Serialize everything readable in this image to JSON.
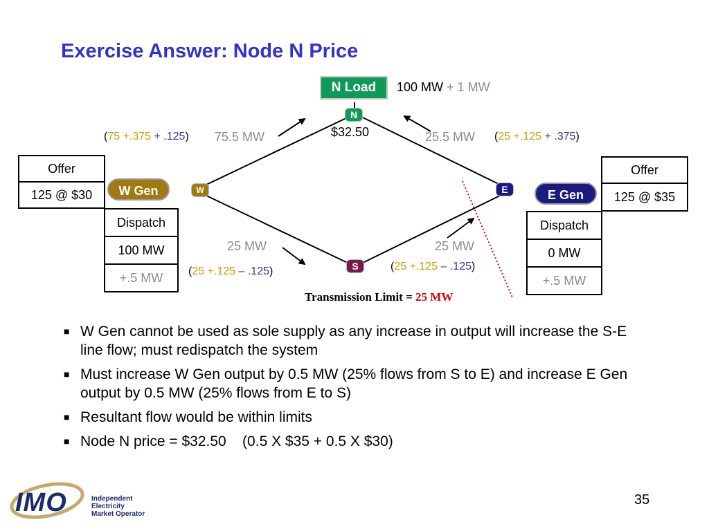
{
  "slide": {
    "title": "Exercise Answer: Node N Price",
    "page_number": "35"
  },
  "diagram": {
    "n_load": {
      "label": "N Load",
      "load": "100 MW",
      "increment": "+ 1 MW"
    },
    "nodes": {
      "n": "N",
      "w": "W",
      "e": "E",
      "s": "S"
    },
    "n_price": "$32.50",
    "flows": {
      "w_n": {
        "value": "75.5 MW",
        "base": "75",
        "plus_a": "+.375",
        "plus_b": "+ .125"
      },
      "e_n": {
        "value": "25.5 MW",
        "base": "25",
        "plus_a": "+.125",
        "plus_b": "+ .375"
      },
      "w_s": {
        "value": "25 MW",
        "base": "25",
        "plus_a": "+.125",
        "plus_b": "– .125"
      },
      "s_e": {
        "value": "25 MW",
        "base": "25",
        "plus_a": "+.125",
        "plus_b": "– .125"
      }
    },
    "w_gen": {
      "label": "W Gen",
      "offer_header": "Offer",
      "offer": "125 @ $30",
      "dispatch_header": "Dispatch",
      "dispatch": "100 MW",
      "delta": "+.5 MW"
    },
    "e_gen": {
      "label": "E Gen",
      "offer_header": "Offer",
      "offer": "125 @ $35",
      "dispatch_header": "Dispatch",
      "dispatch": "0 MW",
      "delta": "+.5 MW"
    },
    "transmission_limit": {
      "label": "Transmission Limit =",
      "value": "25 MW"
    },
    "colors": {
      "title": "#3333cc",
      "n_green": "#0f9a5a",
      "w_gold": "#a07a10",
      "e_navy": "#1a1a80",
      "s_purple": "#7a1a4a",
      "limit_red": "#e00000"
    }
  },
  "bullets": [
    "W Gen cannot be used as sole supply as any increase in output will increase the S-E line flow; must redispatch the system",
    "Must increase W Gen output by 0.5 MW (25% flows from S to E) and increase E Gen output by 0.5 MW  (25% flows from E to S)",
    "Resultant flow would be within limits",
    "Node N price = $32.50    (0.5 X $35 + 0.5 X $30)"
  ],
  "logo": {
    "mark": "IMO",
    "line1": "Independent",
    "line2": "Electricity",
    "line3": "Market Operator"
  }
}
